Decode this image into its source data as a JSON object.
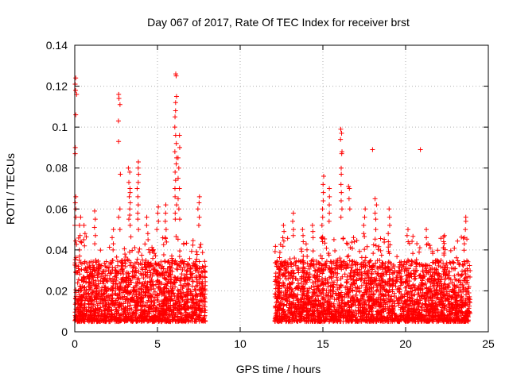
{
  "chart_data": {
    "type": "scatter",
    "title": "Day 067 of 2017, Rate Of TEC Index for receiver brst",
    "xlabel": "GPS time / hours",
    "ylabel": "ROTI / TECUs",
    "xlim": [
      0,
      25
    ],
    "ylim": [
      0,
      0.14
    ],
    "x_ticks": [
      0,
      5,
      10,
      15,
      20,
      25
    ],
    "x_tick_labels": [
      "0",
      "5",
      "10",
      "15",
      "20",
      "25"
    ],
    "y_ticks": [
      0,
      0.02,
      0.04,
      0.06,
      0.08,
      0.1,
      0.12,
      0.14
    ],
    "y_tick_labels": [
      "0",
      "0.02",
      "0.04",
      "0.06",
      "0.08",
      "0.1",
      "0.12",
      "0.14"
    ],
    "grid": true,
    "marker": "+",
    "color": "#ff0000",
    "series": [
      {
        "segments": [
          {
            "x_start": 0.0,
            "x_end": 7.9,
            "base": [
              0.005,
              0.035
            ]
          },
          {
            "x_start": 12.1,
            "x_end": 23.9,
            "base": [
              0.005,
              0.035
            ]
          }
        ],
        "bursts": [
          {
            "x": 0.05,
            "values": [
              0.124,
              0.121,
              0.118,
              0.116,
              0.106,
              0.093,
              0.09,
              0.087,
              0.085,
              0.066,
              0.063,
              0.06,
              0.056,
              0.052,
              0.048
            ]
          },
          {
            "x": 0.3,
            "values": [
              0.056,
              0.052,
              0.047,
              0.044,
              0.04,
              0.037
            ]
          },
          {
            "x": 0.6,
            "values": [
              0.052,
              0.048,
              0.045,
              0.042
            ]
          },
          {
            "x": 1.2,
            "values": [
              0.059,
              0.055,
              0.051,
              0.047,
              0.043
            ]
          },
          {
            "x": 2.3,
            "values": [
              0.05,
              0.046,
              0.043,
              0.04
            ]
          },
          {
            "x": 2.7,
            "values": [
              0.116,
              0.114,
              0.111,
              0.103,
              0.093,
              0.077,
              0.06,
              0.056,
              0.05
            ]
          },
          {
            "x": 3.3,
            "values": [
              0.08,
              0.078,
              0.073,
              0.07,
              0.068,
              0.066,
              0.063,
              0.06,
              0.057,
              0.055,
              0.052
            ]
          },
          {
            "x": 3.8,
            "values": [
              0.083,
              0.08,
              0.077,
              0.073,
              0.07,
              0.066,
              0.062,
              0.058,
              0.055,
              0.05
            ]
          },
          {
            "x": 4.4,
            "values": [
              0.056,
              0.052,
              0.048,
              0.045
            ]
          },
          {
            "x": 5.0,
            "values": [
              0.061,
              0.058,
              0.054,
              0.05
            ]
          },
          {
            "x": 5.5,
            "values": [
              0.062,
              0.058,
              0.054,
              0.05,
              0.046
            ]
          },
          {
            "x": 6.1,
            "values": [
              0.126,
              0.125,
              0.115,
              0.112,
              0.108,
              0.105,
              0.1,
              0.096,
              0.092,
              0.088,
              0.085,
              0.082,
              0.078,
              0.074,
              0.07,
              0.066,
              0.062,
              0.058,
              0.055
            ]
          },
          {
            "x": 6.3,
            "values": [
              0.096,
              0.09,
              0.085,
              0.08,
              0.075,
              0.07,
              0.065,
              0.06,
              0.055
            ]
          },
          {
            "x": 7.5,
            "values": [
              0.066,
              0.063,
              0.06,
              0.056,
              0.052
            ]
          },
          {
            "x": 12.6,
            "values": [
              0.052,
              0.049,
              0.046
            ]
          },
          {
            "x": 13.2,
            "values": [
              0.058,
              0.054,
              0.05,
              0.047
            ]
          },
          {
            "x": 13.8,
            "values": [
              0.05,
              0.047,
              0.044
            ]
          },
          {
            "x": 14.4,
            "values": [
              0.052,
              0.049,
              0.046
            ]
          },
          {
            "x": 15.0,
            "values": [
              0.076,
              0.072,
              0.068,
              0.064,
              0.06,
              0.056,
              0.052
            ]
          },
          {
            "x": 15.4,
            "values": [
              0.07,
              0.066,
              0.062,
              0.058,
              0.054
            ]
          },
          {
            "x": 16.1,
            "values": [
              0.099,
              0.097,
              0.094,
              0.088,
              0.087,
              0.08,
              0.077,
              0.072,
              0.068,
              0.064,
              0.06,
              0.056
            ]
          },
          {
            "x": 16.6,
            "values": [
              0.071,
              0.07,
              0.065,
              0.06
            ]
          },
          {
            "x": 17.5,
            "values": [
              0.06,
              0.056,
              0.052,
              0.048
            ]
          },
          {
            "x": 18.0,
            "values": [
              0.089
            ]
          },
          {
            "x": 18.2,
            "values": [
              0.065,
              0.062,
              0.058,
              0.055,
              0.05
            ]
          },
          {
            "x": 19.0,
            "values": [
              0.06,
              0.056,
              0.052,
              0.048
            ]
          },
          {
            "x": 20.1,
            "values": [
              0.05,
              0.047,
              0.044
            ]
          },
          {
            "x": 20.9,
            "values": [
              0.089
            ]
          },
          {
            "x": 21.3,
            "values": [
              0.05,
              0.046,
              0.043
            ]
          },
          {
            "x": 22.3,
            "values": [
              0.047,
              0.044,
              0.041
            ]
          },
          {
            "x": 23.6,
            "values": [
              0.056,
              0.054,
              0.05,
              0.046,
              0.043
            ]
          }
        ]
      }
    ]
  }
}
